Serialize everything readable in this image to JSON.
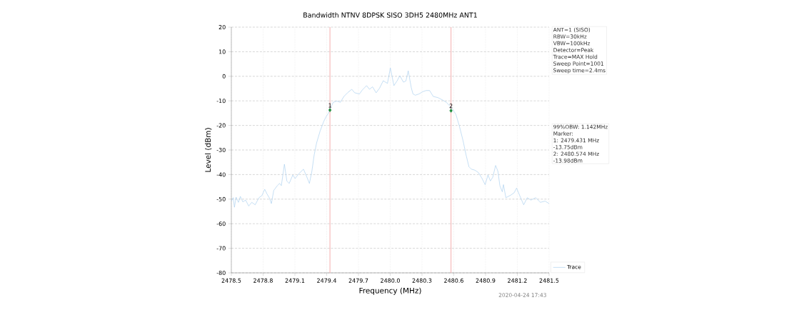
{
  "chart_data": {
    "type": "line",
    "title": "Bandwidth NTNV 8DPSK SISO 3DH5 2480MHz ANT1",
    "xlabel": "Frequency (MHz)",
    "ylabel": "Level (dBm)",
    "xlim": [
      2478.5,
      2481.5
    ],
    "ylim": [
      -80,
      20
    ],
    "xticks": [
      2478.5,
      2478.8,
      2479.1,
      2479.4,
      2479.7,
      {
        "value": 2480.0,
        "label": "2480.0"
      },
      2480.3,
      2480.6,
      2480.9,
      2481.2,
      2481.5
    ],
    "yticks": [
      -80,
      -70,
      -60,
      -50,
      -40,
      -30,
      -20,
      -10,
      0,
      10,
      20
    ],
    "grid": true,
    "legend": "bottom right",
    "series": [
      {
        "name": "Trace",
        "color": "#9fc9ec",
        "x": [
          2478.5,
          2478.518,
          2478.529,
          2478.545,
          2478.567,
          2478.585,
          2478.608,
          2478.635,
          2478.664,
          2478.693,
          2478.725,
          2478.761,
          2478.788,
          2478.815,
          2478.837,
          2478.86,
          2478.878,
          2478.9,
          2478.934,
          2478.956,
          2478.972,
          2479.001,
          2479.024,
          2479.046,
          2479.08,
          2479.102,
          2479.136,
          2479.181,
          2479.21,
          2479.237,
          2479.26,
          2479.282,
          2479.305,
          2479.338,
          2479.372,
          2479.395,
          2479.417,
          2479.435,
          2479.462,
          2479.496,
          2479.529,
          2479.563,
          2479.597,
          2479.637,
          2479.664,
          2479.709,
          2479.736,
          2479.777,
          2479.804,
          2479.833,
          2479.867,
          2479.9,
          2479.934,
          2479.974,
          2480.001,
          2480.035,
          2480.064,
          2480.091,
          2480.125,
          2480.148,
          2480.17,
          2480.199,
          2480.215,
          2480.237,
          2480.271,
          2480.305,
          2480.339,
          2480.372,
          2480.406,
          2480.451,
          2480.496,
          2480.53,
          2480.563,
          2480.59,
          2480.62,
          2480.653,
          2480.687,
          2480.716,
          2480.743,
          2480.766,
          2480.799,
          2480.833,
          2480.867,
          2480.896,
          2480.923,
          2480.946,
          2480.968,
          2480.995,
          2481.017,
          2481.035,
          2481.058,
          2481.069,
          2481.092,
          2481.137,
          2481.17,
          2481.193,
          2481.226,
          2481.26,
          2481.294,
          2481.328,
          2481.373,
          2481.418,
          2481.462,
          2481.5
        ],
        "values": [
          -50.8,
          -49.4,
          -53.3,
          -49.2,
          -51.3,
          -48.9,
          -51.1,
          -50.4,
          -52.8,
          -51.3,
          -52.3,
          -49.4,
          -48.6,
          -46.0,
          -47.9,
          -49.6,
          -51.8,
          -46.5,
          -44.5,
          -43.6,
          -44.5,
          -35.8,
          -42.6,
          -43.6,
          -40.2,
          -41.6,
          -39.7,
          -37.8,
          -40.7,
          -43.6,
          -38.7,
          -32.0,
          -27.1,
          -22.3,
          -18.4,
          -16.4,
          -15.0,
          -13.0,
          -10.6,
          -10.1,
          -10.6,
          -8.2,
          -6.7,
          -5.3,
          -6.7,
          -7.2,
          -5.6,
          -3.8,
          -5.3,
          -4.3,
          -6.7,
          -4.8,
          -1.8,
          -2.9,
          3.4,
          -3.8,
          -1.9,
          0.2,
          -2.4,
          -1.9,
          2.2,
          -4.7,
          -7.2,
          -7.7,
          -7.2,
          -6.3,
          -5.8,
          -5.8,
          -8.2,
          -8.7,
          -9.7,
          -10.6,
          -12.1,
          -13.5,
          -15.5,
          -20.3,
          -26.1,
          -32.0,
          -36.8,
          -37.8,
          -38.2,
          -39.2,
          -41.6,
          -44.1,
          -40.2,
          -42.6,
          -41.1,
          -36.3,
          -38.7,
          -44.5,
          -47.0,
          -44.1,
          -49.4,
          -48.4,
          -47.4,
          -45.5,
          -48.9,
          -52.3,
          -49.4,
          -50.4,
          -49.4,
          -51.3,
          -50.8,
          -51.8
        ]
      },
      {
        "type": "scatter",
        "color": "#1b8a3a",
        "marker": "diamond",
        "x": [
          2479.431,
          2480.574
        ],
        "values": [
          -13.75,
          -13.98
        ]
      }
    ],
    "ref_lines": [
      {
        "axis": "x",
        "value": 2479.431,
        "color": "#f29a9a"
      },
      {
        "axis": "x",
        "value": 2480.574,
        "color": "#f29a9a"
      }
    ],
    "annotations": [
      "ANT=1 (SISO)",
      "RBW=30kHz",
      "VBW=100kHz",
      "Detector=Peak",
      "Trace=MAX Hold",
      "Sweep Point=1001",
      "Sweep time=2.4ms",
      "99%OBW: 1.142MHz",
      "Marker:",
      "1: 2479.431 MHz",
      "-13.75dBm",
      "2: 2480.574 MHz",
      "-13.98dBm",
      "2020-04-24 17:43",
      {
        "text": "1",
        "x": 2479.431,
        "y": -13.75
      },
      {
        "text": "2",
        "x": 2480.574,
        "y": -13.98
      }
    ]
  }
}
